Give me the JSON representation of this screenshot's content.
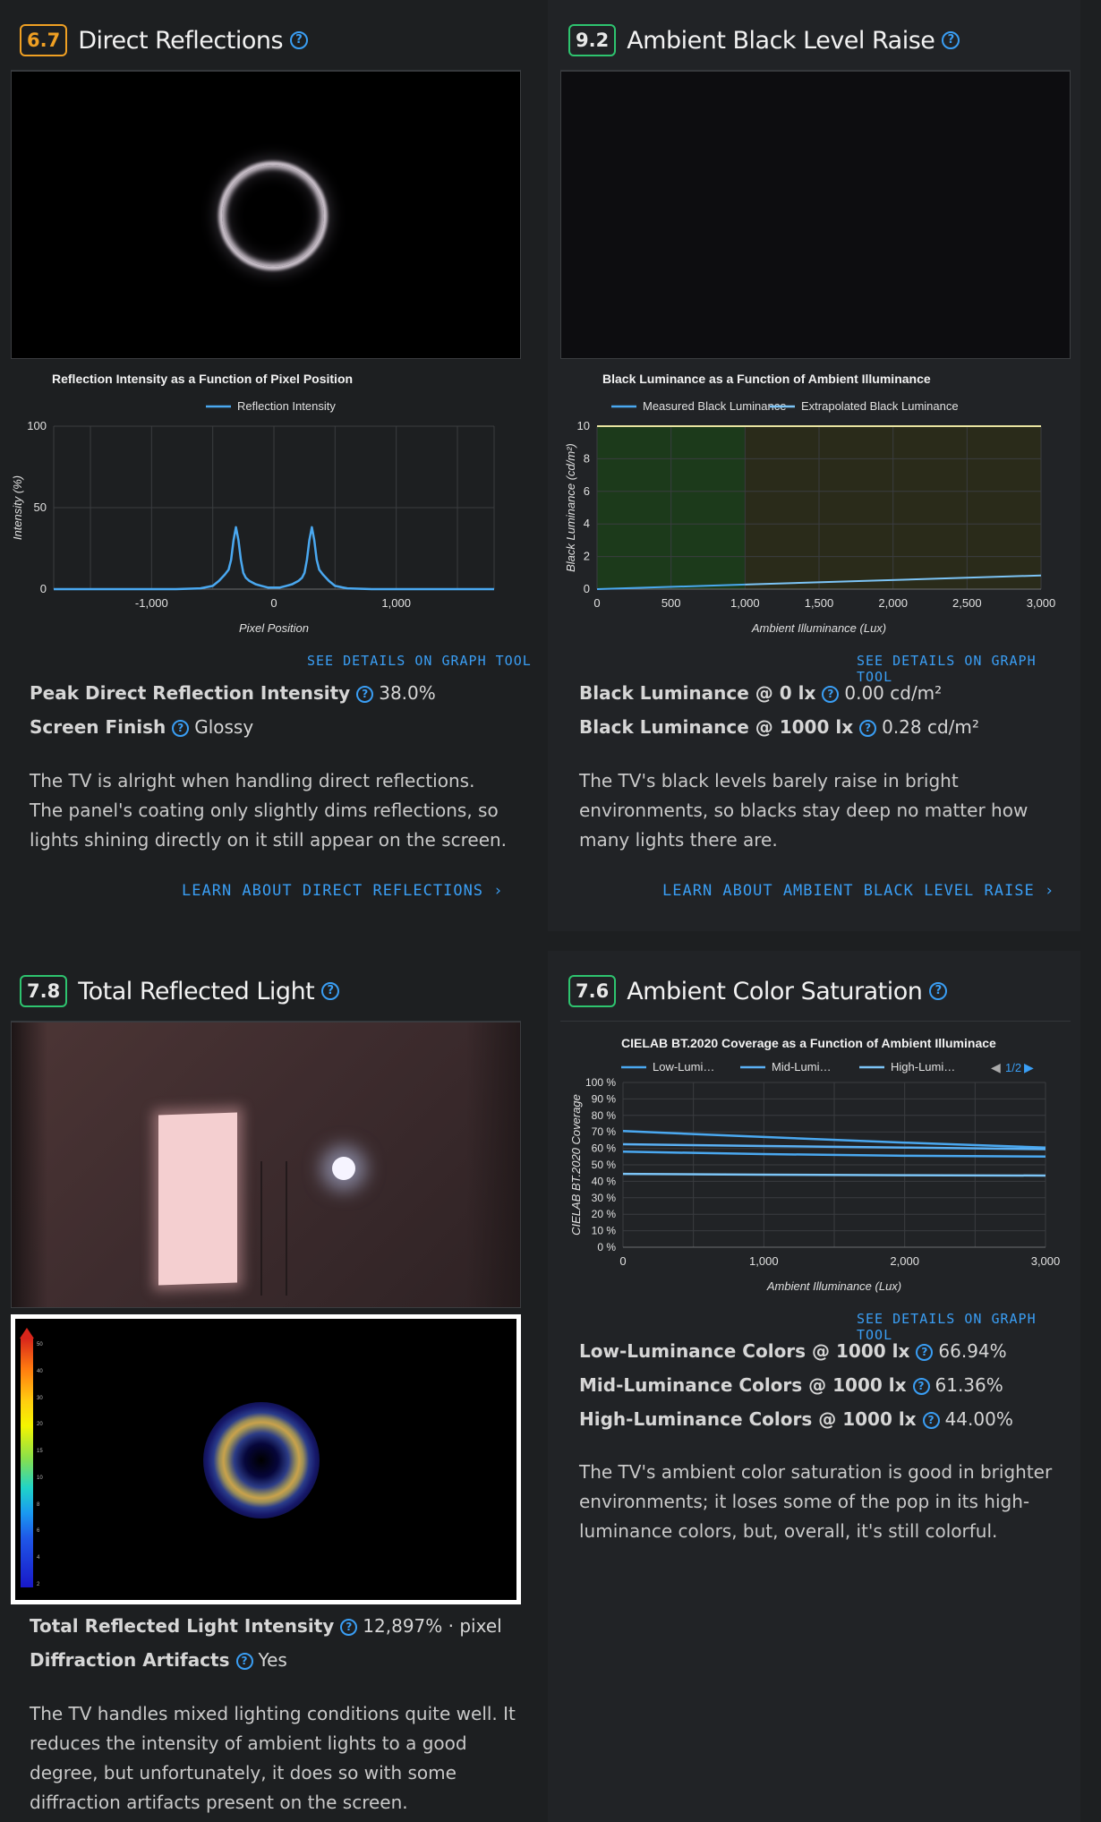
{
  "sections": {
    "direct_reflections": {
      "score": "6.7",
      "title": "Direct Reflections",
      "chart_title": "Reflection Intensity as a Function of Pixel Position",
      "graph_link": "SEE DETAILS ON GRAPH TOOL",
      "metrics": [
        {
          "label": "Peak Direct Reflection Intensity",
          "value": "38.0%"
        },
        {
          "label": "Screen Finish",
          "value": "Glossy"
        }
      ],
      "description": "The TV is alright when handling direct reflections. The panel's coating only slightly dims reflections, so lights shining directly on it still appear on the screen.",
      "learn_link": "LEARN ABOUT DIRECT REFLECTIONS"
    },
    "ambient_black": {
      "score": "9.2",
      "title": "Ambient Black Level Raise",
      "chart_title": "Black Luminance as a Function of Ambient Illuminance",
      "graph_link": "SEE DETAILS ON GRAPH TOOL",
      "metrics": [
        {
          "label": "Black Luminance @ 0 lx",
          "value": "0.00 cd/m²"
        },
        {
          "label": "Black Luminance @ 1000 lx",
          "value": "0.28 cd/m²"
        }
      ],
      "description": "The TV's black levels barely raise in bright environments, so blacks stay deep no matter how many lights there are.",
      "learn_link": "LEARN ABOUT AMBIENT BLACK LEVEL RAISE"
    },
    "total_reflected": {
      "score": "7.8",
      "title": "Total Reflected Light",
      "metrics": [
        {
          "label": "Total Reflected Light Intensity",
          "value": "12,897% · pixel"
        },
        {
          "label": "Diffraction Artifacts",
          "value": "Yes"
        }
      ],
      "description": "The TV handles mixed lighting conditions quite well. It reduces the intensity of ambient lights to a good degree, but unfortunately, it does so with some diffraction artifacts present on the screen.",
      "scale_ticks": [
        "50",
        "40",
        "30",
        "20",
        "15",
        "10",
        "8",
        "6",
        "4",
        "2"
      ]
    },
    "ambient_color": {
      "score": "7.6",
      "title": "Ambient Color Saturation",
      "chart_title": "CIELAB BT.2020 Coverage as a Function of Ambient Illuminace",
      "legend_page": "1/2",
      "graph_link": "SEE DETAILS ON GRAPH TOOL",
      "metrics": [
        {
          "label": "Low-Luminance Colors @ 1000 lx",
          "value": "66.94%"
        },
        {
          "label": "Mid-Luminance Colors @ 1000 lx",
          "value": "61.36%"
        },
        {
          "label": "High-Luminance Colors @ 1000 lx",
          "value": "44.00%"
        }
      ],
      "description": "The TV's ambient color saturation is good in brighter environments; it loses some of the pop in its high-luminance colors, but, overall, it's still colorful."
    }
  },
  "colors": {
    "accent": "#3a9ef4",
    "orange_badge": "#f0a023",
    "green_badge": "#2ec46f",
    "line": "#4aa8f0"
  },
  "chart_data": [
    {
      "type": "line",
      "title": "Reflection Intensity as a Function of Pixel Position",
      "xlabel": "Pixel Position",
      "ylabel": "Intensity (%)",
      "xlim": [
        -1800,
        1800
      ],
      "ylim": [
        0,
        100
      ],
      "x_ticks": [
        -1000,
        0,
        1000
      ],
      "x_tick_labels": [
        "-1,000",
        "0",
        "1,000"
      ],
      "y_ticks": [
        0,
        50,
        100
      ],
      "y_tick_labels": [
        "0",
        "50",
        "100"
      ],
      "series": [
        {
          "name": "Reflection Intensity",
          "x": [
            -1800,
            -800,
            -600,
            -500,
            -450,
            -400,
            -370,
            -350,
            -330,
            -310,
            -290,
            -270,
            -250,
            -230,
            -200,
            -150,
            -100,
            -50,
            0,
            50,
            100,
            150,
            200,
            230,
            250,
            270,
            290,
            310,
            330,
            350,
            370,
            400,
            450,
            500,
            600,
            800,
            1800
          ],
          "y": [
            0,
            0,
            0.5,
            2,
            5,
            9,
            12,
            18,
            30,
            38,
            30,
            18,
            10,
            7,
            5,
            3,
            2,
            1,
            1,
            1,
            2,
            3,
            5,
            7,
            10,
            18,
            30,
            38,
            30,
            18,
            12,
            9,
            5,
            2,
            0.5,
            0,
            0
          ]
        }
      ],
      "grid": true,
      "legend": "top"
    },
    {
      "type": "line",
      "title": "Black Luminance as a Function of Ambient Illuminance",
      "xlabel": "Ambient Illuminance (Lux)",
      "ylabel": "Black Luminance (cd/m²)",
      "xlim": [
        0,
        3000
      ],
      "ylim": [
        0,
        10
      ],
      "x_ticks": [
        0,
        500,
        1000,
        1500,
        2000,
        2500,
        3000
      ],
      "x_tick_labels": [
        "0",
        "500",
        "1,000",
        "1,500",
        "2,000",
        "2,500",
        "3,000"
      ],
      "y_ticks": [
        0,
        2,
        4,
        6,
        8,
        10
      ],
      "y_tick_labels": [
        "0",
        "2",
        "4",
        "6",
        "8",
        "10"
      ],
      "series": [
        {
          "name": "Measured Black Luminance",
          "x": [
            0,
            1000
          ],
          "y": [
            0,
            0.28
          ]
        },
        {
          "name": "Extrapolated Black Luminance",
          "x": [
            1000,
            3000
          ],
          "y": [
            0.28,
            0.84
          ]
        }
      ],
      "grid": true,
      "legend": "top"
    },
    {
      "type": "line",
      "title": "CIELAB BT.2020 Coverage as a Function of Ambient Illuminace",
      "xlabel": "Ambient Illuminance (Lux)",
      "ylabel": "CIELAB BT.2020 Coverage",
      "xlim": [
        0,
        3000
      ],
      "ylim": [
        0,
        100
      ],
      "x_ticks": [
        0,
        1000,
        2000,
        3000
      ],
      "x_tick_labels": [
        "0",
        "1,000",
        "2,000",
        "3,000"
      ],
      "y_ticks": [
        0,
        10,
        20,
        30,
        40,
        50,
        60,
        70,
        80,
        90,
        100
      ],
      "y_tick_labels": [
        "0 %",
        "10 %",
        "20 %",
        "30 %",
        "40 %",
        "50 %",
        "60 %",
        "70 %",
        "80 %",
        "90 %",
        "100 %"
      ],
      "series": [
        {
          "name": "Low-Lumi…",
          "x": [
            0,
            1000,
            2000,
            3000
          ],
          "y": [
            70.5,
            66.9,
            63.5,
            60.5
          ]
        },
        {
          "name": "Mid-Lumi…",
          "x": [
            0,
            1000,
            2000,
            3000
          ],
          "y": [
            62.5,
            61.4,
            60.5,
            59.5
          ]
        },
        {
          "name": "High-Lumi…",
          "x": [
            0,
            1000,
            2000,
            3000
          ],
          "y": [
            44.5,
            44.0,
            43.7,
            43.5
          ]
        },
        {
          "name": "",
          "x": [
            0,
            1000,
            2000,
            3000
          ],
          "y": [
            58,
            56.5,
            55.5,
            55
          ]
        }
      ],
      "grid": true,
      "legend": "top"
    }
  ]
}
